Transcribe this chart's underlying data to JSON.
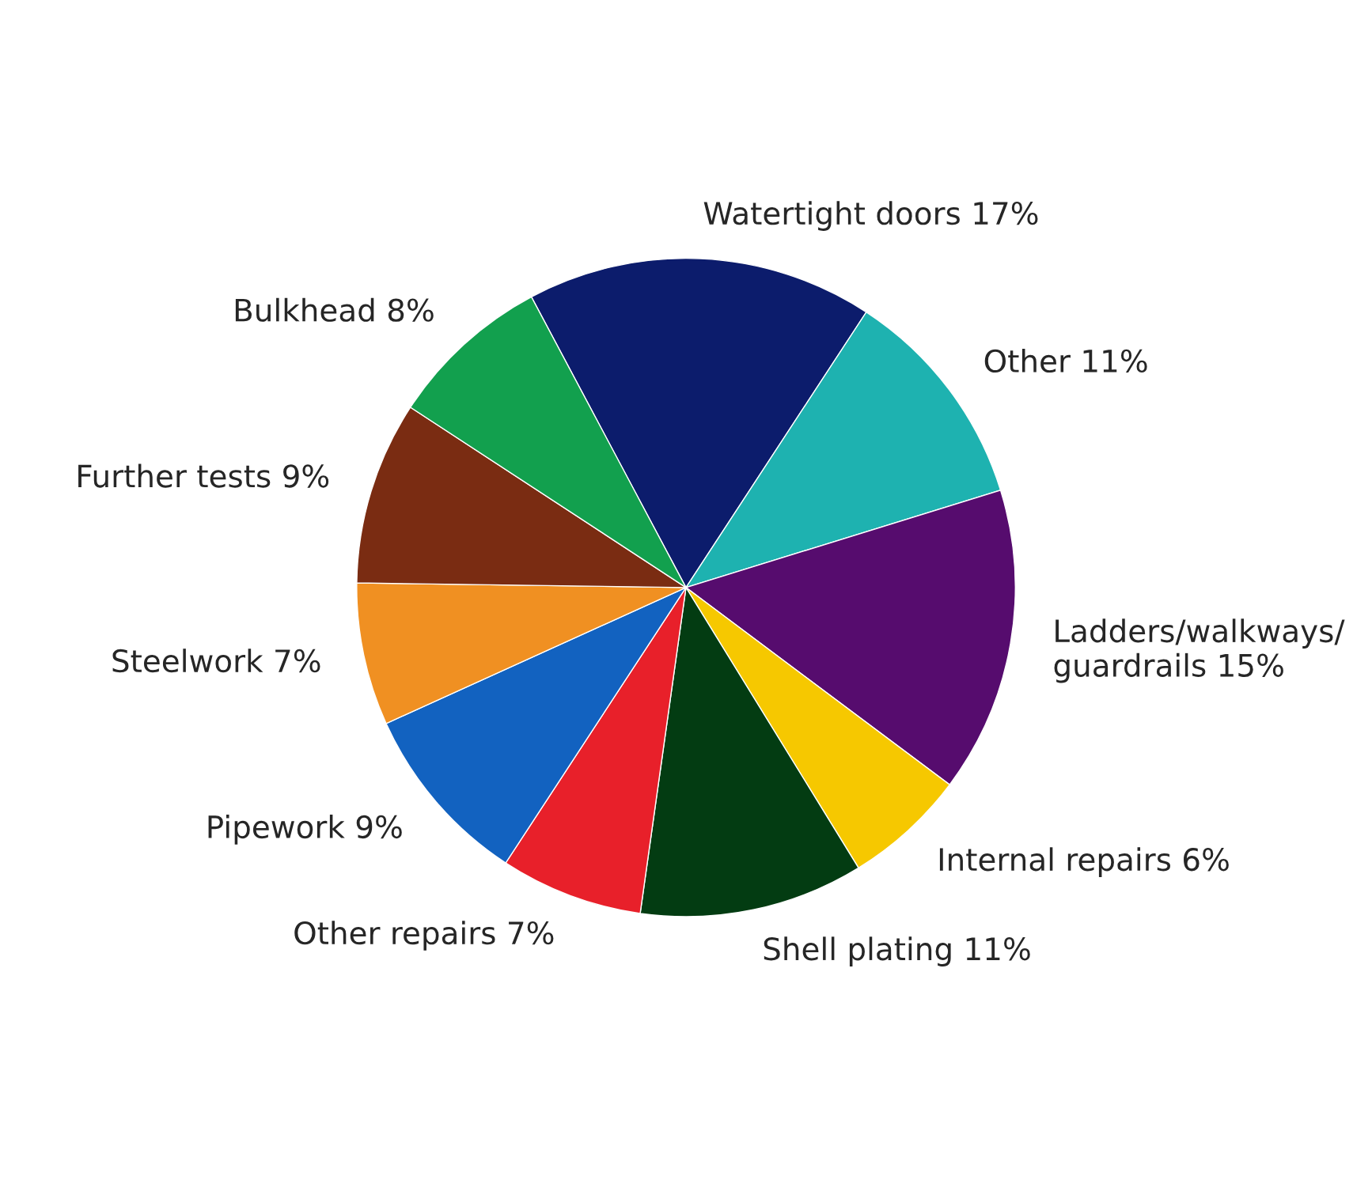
{
  "chart_data": {
    "type": "pie",
    "categories": [
      "Watertight doors",
      "Other",
      "Ladders/walkways/\nguardrails",
      "Internal repairs",
      "Shell plating",
      "Other repairs",
      "Pipework",
      "Steelwork",
      "Further tests",
      "Bulkhead"
    ],
    "values": [
      17,
      11,
      15,
      6,
      11,
      7,
      9,
      7,
      9,
      8
    ],
    "value_labels": [
      "17%",
      "11%",
      "15%",
      "6%",
      "11%",
      "7%",
      "9%",
      "7%",
      "9%",
      "8%"
    ],
    "colors": [
      "#0c1c6c",
      "#1eb2b0",
      "#560c6e",
      "#f6c800",
      "#033c12",
      "#e8202a",
      "#1262c0",
      "#f09022",
      "#7a2c12",
      "#12a04e"
    ],
    "legend": false
  }
}
